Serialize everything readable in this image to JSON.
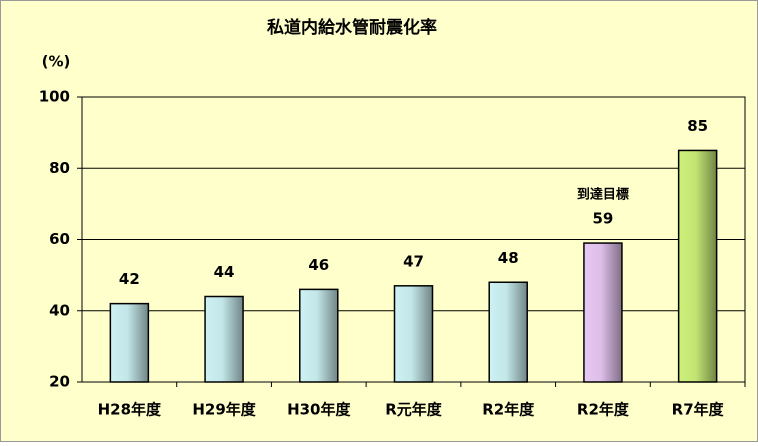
{
  "chart_data": {
    "type": "bar",
    "title": "私道内給水管耐震化率",
    "y_label": "(%)",
    "categories": [
      "H28年度",
      "H29年度",
      "H30年度",
      "R元年度",
      "R2年度",
      "R2年度",
      "R7年度"
    ],
    "values": [
      42,
      44,
      46,
      47,
      48,
      59,
      85
    ],
    "colors": [
      "#cdf2f4",
      "#cdf2f4",
      "#cdf2f4",
      "#cdf2f4",
      "#cdf2f4",
      "#e8c8f4",
      "#cdf07a"
    ],
    "annotation": "到達目標",
    "ylim": [
      20,
      100
    ],
    "yticks": [
      20,
      40,
      60,
      80,
      100
    ],
    "grid": true
  }
}
